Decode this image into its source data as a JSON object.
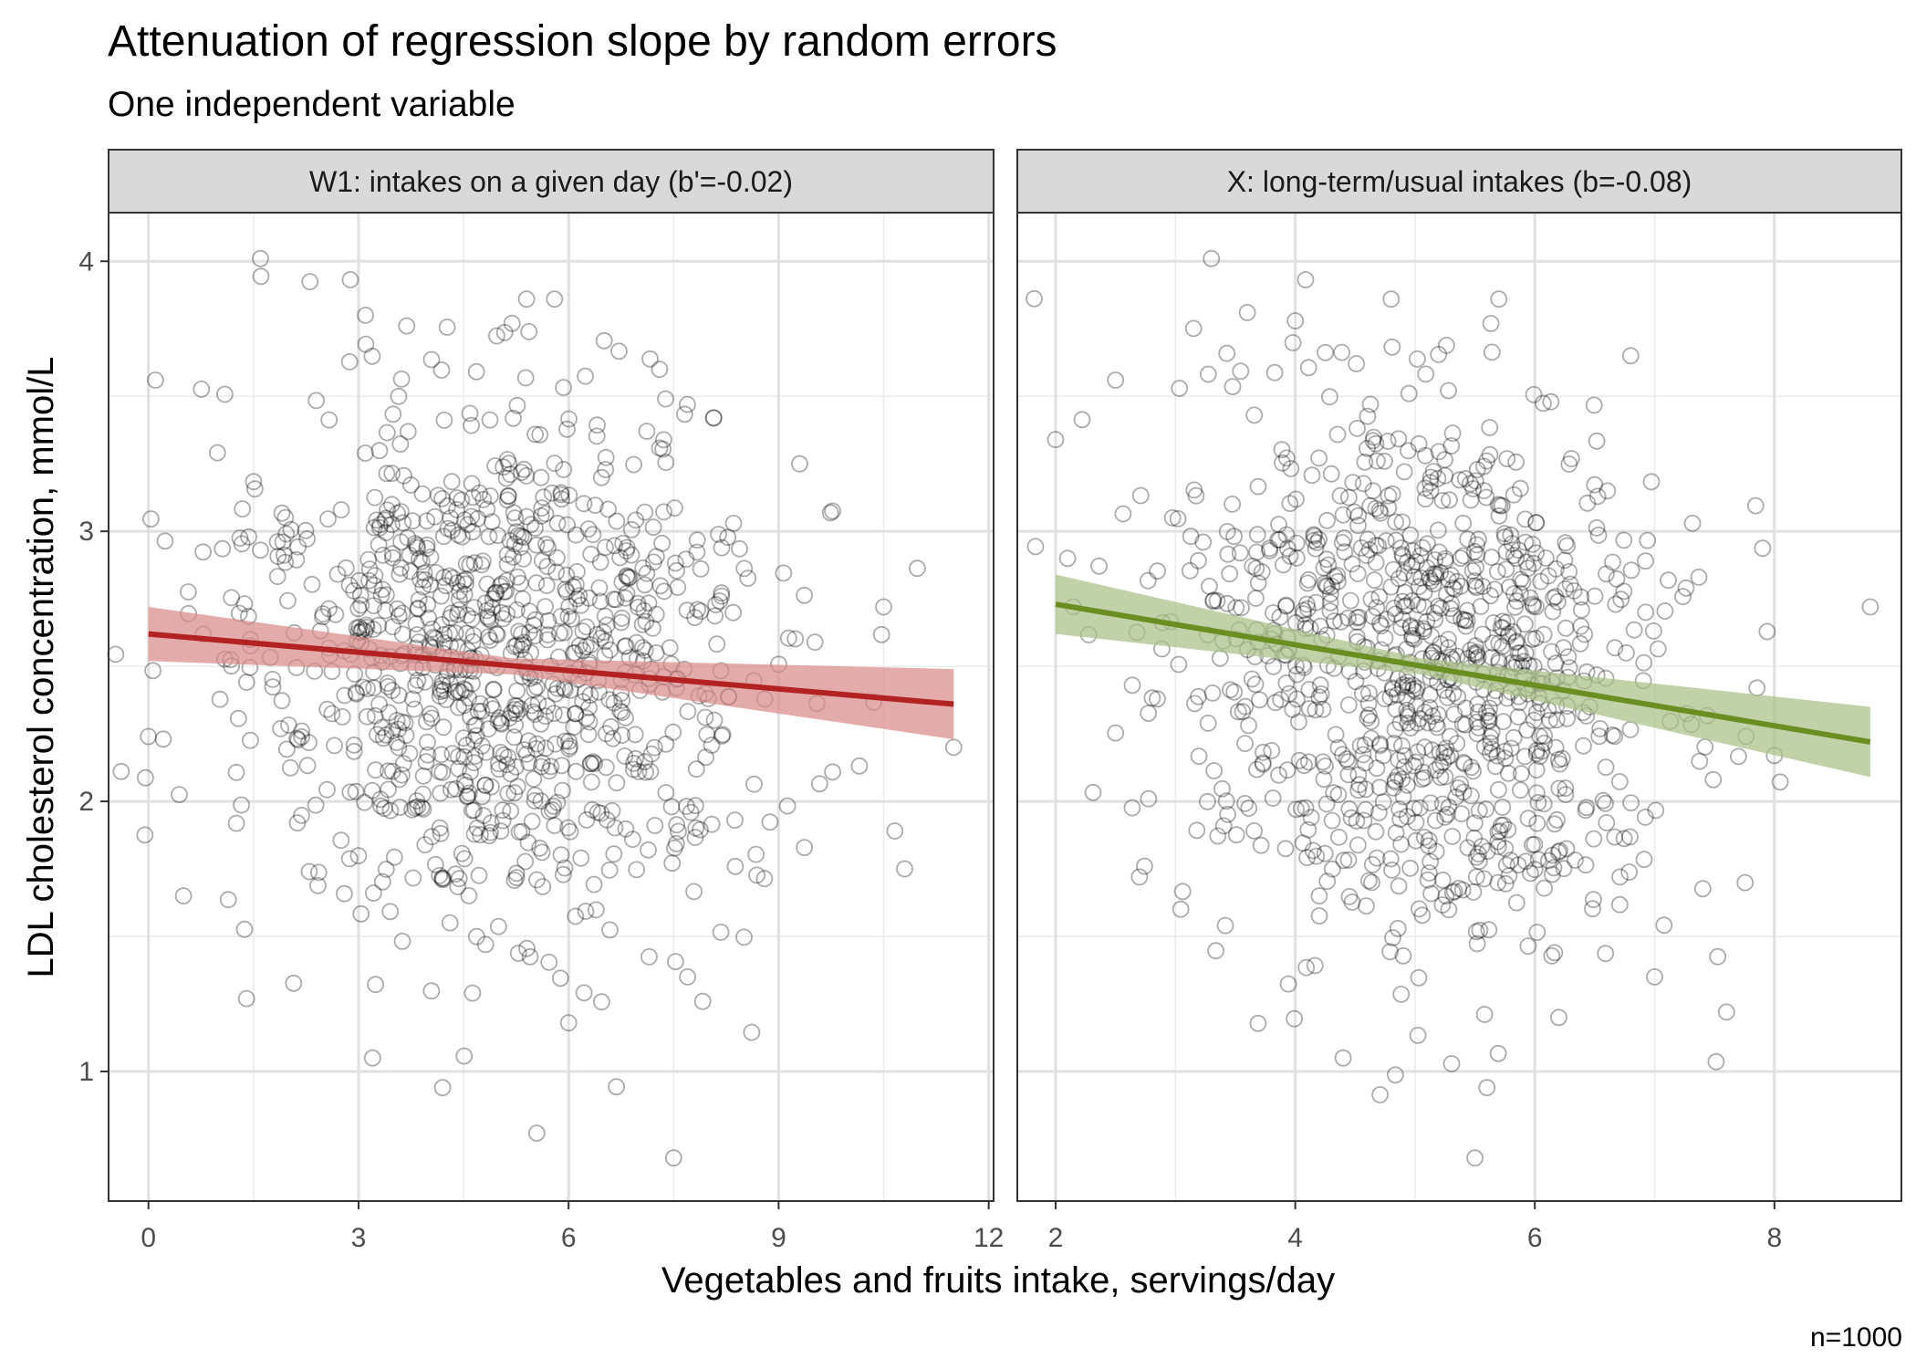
{
  "chart_data": {
    "type": "scatter",
    "title": "Attenuation of regression slope by random errors",
    "subtitle": "One independent variable",
    "xlabel": "Vegetables and fruits intake, servings/day",
    "ylabel": "LDL cholesterol concentration, mmol/L",
    "caption": "n=1000",
    "n": 1000,
    "ylim": [
      0.52,
      4.18
    ],
    "y_ticks": [
      1,
      2,
      3,
      4
    ],
    "y_tick_labels": [
      "1",
      "2",
      "3",
      "4"
    ],
    "grid": true,
    "point_style": "open circles, dark gray, semi-transparent",
    "panels": [
      {
        "strip_label": "W1: intakes on a given day (b'=-0.02)",
        "x_variable": "W1",
        "xlim": [
          -0.57,
          12.07
        ],
        "x_ticks": [
          0,
          3,
          6,
          9,
          12
        ],
        "x_tick_labels": [
          "0",
          "3",
          "6",
          "9",
          "12"
        ],
        "color": "#B22222",
        "band_color": "#D98B8B",
        "slope": -0.0224,
        "fit": {
          "x": [
            0,
            11.5
          ],
          "y": [
            2.62,
            2.36
          ]
        },
        "ci": {
          "x": [
            0,
            5.2,
            11.5
          ],
          "lower": [
            2.52,
            2.47,
            2.23
          ],
          "upper": [
            2.72,
            2.53,
            2.49
          ]
        },
        "points_sample": [
          {
            "x": 1.6,
            "y": 4.01
          },
          {
            "x": 0.1,
            "y": 3.56
          },
          {
            "x": 3.1,
            "y": 3.8
          },
          {
            "x": 5.4,
            "y": 3.86
          },
          {
            "x": 5.8,
            "y": 3.86
          },
          {
            "x": 7.3,
            "y": 3.6
          },
          {
            "x": 9.3,
            "y": 3.25
          },
          {
            "x": 10.5,
            "y": 2.72
          },
          {
            "x": 11.5,
            "y": 2.2
          },
          {
            "x": 10.8,
            "y": 1.75
          },
          {
            "x": 0.0,
            "y": 2.24
          },
          {
            "x": 0.5,
            "y": 1.65
          },
          {
            "x": 1.4,
            "y": 1.27
          },
          {
            "x": 3.2,
            "y": 1.05
          },
          {
            "x": 4.2,
            "y": 0.94
          },
          {
            "x": 7.5,
            "y": 0.68
          },
          {
            "x": 7.7,
            "y": 1.35
          },
          {
            "x": 6.0,
            "y": 1.18
          }
        ]
      },
      {
        "strip_label": "X: long-term/usual intakes (b=-0.08)",
        "x_variable": "X",
        "xlim": [
          1.68,
          9.06
        ],
        "x_ticks": [
          2,
          4,
          6,
          8
        ],
        "x_tick_labels": [
          "2",
          "4",
          "6",
          "8"
        ],
        "color": "#6B8E23",
        "band_color": "#A9BF87",
        "slope": -0.0749,
        "fit": {
          "x": [
            2,
            8.8
          ],
          "y": [
            2.73,
            2.22
          ]
        },
        "ci": {
          "x": [
            2,
            5.05,
            8.8
          ],
          "lower": [
            2.62,
            2.47,
            2.09
          ],
          "upper": [
            2.84,
            2.53,
            2.35
          ]
        },
        "points_sample": [
          {
            "x": 3.3,
            "y": 4.01
          },
          {
            "x": 3.6,
            "y": 3.81
          },
          {
            "x": 4.8,
            "y": 3.86
          },
          {
            "x": 5.7,
            "y": 3.86
          },
          {
            "x": 6.8,
            "y": 3.65
          },
          {
            "x": 2.0,
            "y": 3.34
          },
          {
            "x": 2.5,
            "y": 3.56
          },
          {
            "x": 8.8,
            "y": 2.72
          },
          {
            "x": 8.0,
            "y": 2.17
          },
          {
            "x": 7.6,
            "y": 1.22
          },
          {
            "x": 2.7,
            "y": 1.72
          },
          {
            "x": 4.4,
            "y": 1.05
          },
          {
            "x": 5.6,
            "y": 0.94
          },
          {
            "x": 5.5,
            "y": 0.68
          },
          {
            "x": 6.2,
            "y": 1.2
          },
          {
            "x": 7.0,
            "y": 1.35
          },
          {
            "x": 2.1,
            "y": 2.9
          },
          {
            "x": 4.2,
            "y": 1.65
          }
        ]
      }
    ]
  }
}
